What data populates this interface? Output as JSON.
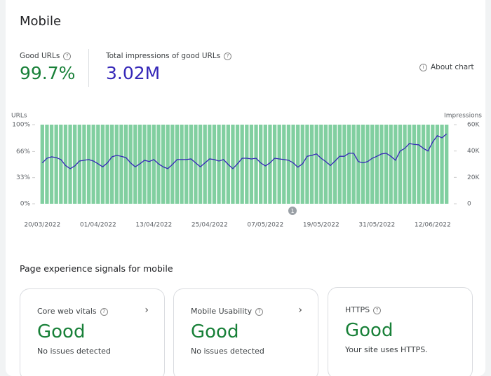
{
  "header": {
    "title": "Mobile",
    "about_chart": "About chart"
  },
  "metrics": [
    {
      "label": "Good URLs",
      "value": "99.7%"
    },
    {
      "label": "Total impressions of good URLs",
      "value": "3.02M"
    }
  ],
  "chart_data": {
    "type": "bar",
    "y_label": "URLs",
    "y2_label": "Impressions",
    "annotation": "1",
    "categories": [
      "20/03/2022",
      null,
      null,
      null,
      null,
      null,
      null,
      null,
      null,
      null,
      null,
      null,
      "01/04/2022",
      null,
      null,
      null,
      null,
      null,
      null,
      null,
      null,
      null,
      null,
      null,
      "13/04/2022",
      null,
      null,
      null,
      null,
      null,
      null,
      null,
      null,
      null,
      null,
      null,
      "25/04/2022",
      null,
      null,
      null,
      null,
      null,
      null,
      null,
      null,
      null,
      null,
      null,
      "07/05/2022",
      null,
      null,
      null,
      null,
      null,
      null,
      null,
      null,
      null,
      null,
      null,
      "19/05/2022",
      null,
      null,
      null,
      null,
      null,
      null,
      null,
      null,
      null,
      null,
      null,
      "31/05/2022",
      null,
      null,
      null,
      null,
      null,
      null,
      null,
      null,
      null,
      null,
      null,
      "12/06/2022",
      null,
      null,
      null
    ],
    "series": [
      {
        "mark": "bar",
        "color": "#81cfa0",
        "values": [
          100,
          100,
          100,
          100,
          100,
          100,
          100,
          100,
          100,
          100,
          100,
          100,
          100,
          100,
          100,
          100,
          100,
          100,
          100,
          100,
          100,
          100,
          100,
          100,
          100,
          100,
          100,
          100,
          100,
          100,
          100,
          100,
          100,
          100,
          100,
          100,
          100,
          100,
          100,
          100,
          100,
          100,
          100,
          100,
          100,
          100,
          100,
          100,
          100,
          100,
          100,
          100,
          100,
          100,
          100,
          100,
          100,
          100,
          100,
          100,
          100,
          100,
          100,
          100,
          100,
          100,
          100,
          100,
          100,
          100,
          100,
          100,
          100,
          100,
          100,
          100,
          100,
          100,
          100,
          100,
          100,
          100,
          100,
          100,
          100,
          100,
          100,
          100
        ]
      },
      {
        "mark": "line",
        "axis": "y2",
        "color": "#3527b8",
        "values": [
          31000,
          34500,
          35600,
          35000,
          33500,
          29000,
          26600,
          28700,
          32400,
          33000,
          33500,
          32400,
          30300,
          28000,
          31000,
          35600,
          36700,
          36000,
          35000,
          31000,
          28000,
          30300,
          33000,
          32000,
          33500,
          30300,
          28000,
          26600,
          29800,
          33500,
          33500,
          33500,
          34000,
          31000,
          28000,
          31000,
          34000,
          33500,
          32400,
          33500,
          29800,
          26600,
          30300,
          34500,
          34500,
          34000,
          34500,
          31000,
          28700,
          31000,
          34500,
          34000,
          33500,
          33000,
          31000,
          27700,
          30300,
          36000,
          36700,
          37800,
          34500,
          32000,
          29000,
          32400,
          36000,
          36000,
          38300,
          38300,
          32000,
          31000,
          32000,
          34500,
          36000,
          37800,
          38300,
          36000,
          33000,
          40000,
          42000,
          45700,
          45000,
          44700,
          42000,
          40000,
          46800,
          51600,
          50000,
          53000
        ]
      }
    ],
    "ylim": [
      0,
      100
    ],
    "yticks": [
      {
        "value": 0,
        "label": "0%"
      },
      {
        "value": 33,
        "label": "33%"
      },
      {
        "value": 66,
        "label": "66%"
      },
      {
        "value": 100,
        "label": "100%"
      }
    ],
    "y2lim": [
      0,
      60000
    ],
    "y2ticks": [
      0,
      {
        "value": 20000,
        "label": "20K"
      },
      {
        "value": 40000,
        "label": "40K"
      },
      {
        "value": 60000,
        "label": "60K"
      }
    ]
  },
  "signals": {
    "title": "Page experience signals for mobile",
    "cards": [
      {
        "title": "Core web vitals",
        "status": "Good",
        "detail": "No issues detected"
      },
      {
        "title": "Mobile Usability",
        "status": "Good",
        "detail": "No issues detected"
      },
      {
        "title": "HTTPS",
        "status": "Good",
        "detail": "Your site uses HTTPS."
      }
    ]
  }
}
